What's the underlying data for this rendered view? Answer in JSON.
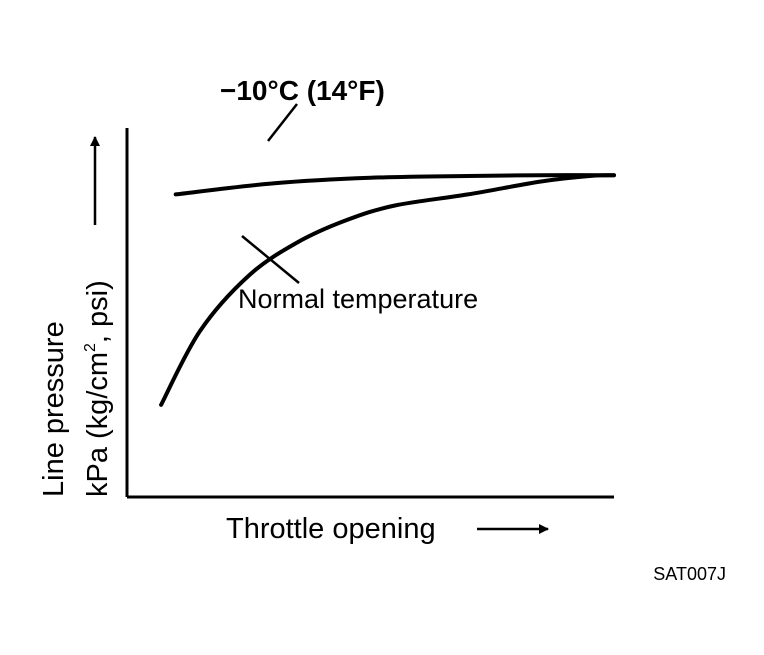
{
  "chart_data": {
    "type": "line",
    "xlabel": "Throttle opening",
    "ylabel_line1": "Line pressure",
    "ylabel_line2_prefix": "kPa (kg/cm",
    "ylabel_line2_sup": "2",
    "ylabel_line2_suffix": ", psi)",
    "series": [
      {
        "name": "−10°C (14°F)",
        "x": [
          0.1,
          0.3,
          0.5,
          0.7,
          0.85,
          1.0
        ],
        "y": [
          0.82,
          0.85,
          0.865,
          0.87,
          0.872,
          0.872
        ]
      },
      {
        "name": "Normal temperature",
        "x": [
          0.07,
          0.15,
          0.25,
          0.35,
          0.45,
          0.55,
          0.7,
          0.85,
          0.95,
          1.0
        ],
        "y": [
          0.25,
          0.45,
          0.6,
          0.69,
          0.75,
          0.79,
          0.82,
          0.855,
          0.87,
          0.872
        ]
      }
    ],
    "xlim": [
      0,
      1
    ],
    "ylim": [
      0,
      1
    ],
    "ticks": "none",
    "grid": false,
    "legend": "none"
  },
  "figure_code": "SAT007J",
  "colors": {
    "ink": "#000000",
    "background": "#ffffff"
  }
}
